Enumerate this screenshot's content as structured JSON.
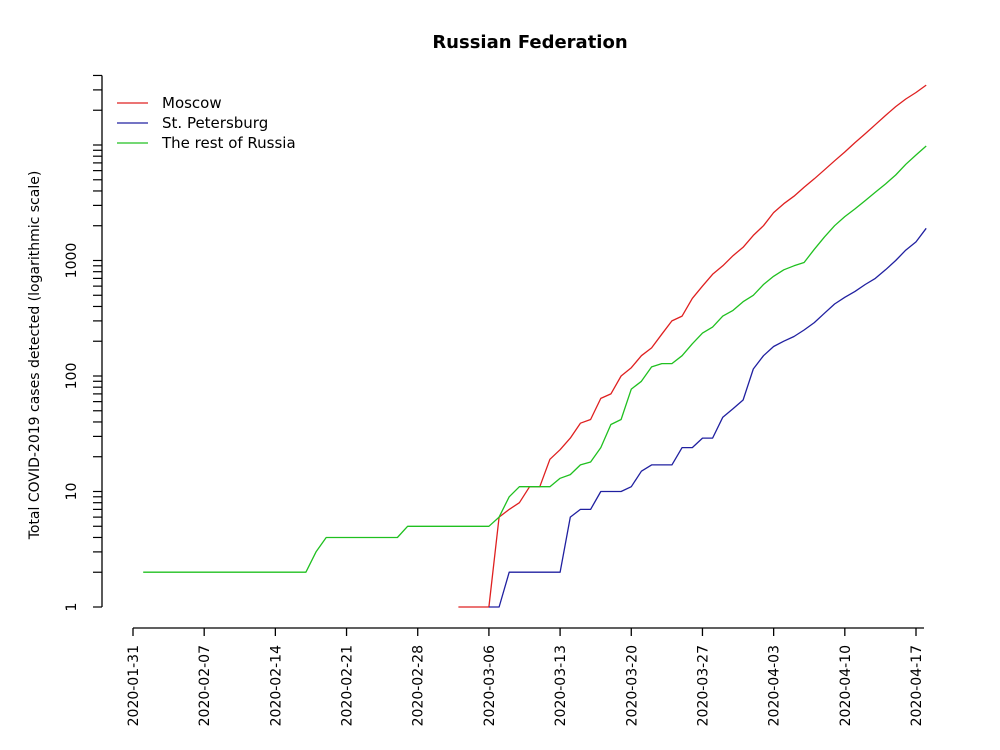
{
  "chart_data": {
    "type": "line",
    "title": "Russian Federation",
    "xlabel": "",
    "ylabel": "Total COVID-2019 cases detected (logarithmic scale)",
    "y_scale": "log",
    "ylim": [
      1,
      40000
    ],
    "y_ticks": [
      1,
      10,
      100,
      1000
    ],
    "y_tick_labels": [
      "1",
      "10",
      "100",
      "1000"
    ],
    "xlim": [
      "2020-01-31",
      "2020-04-18"
    ],
    "x_ticks": [
      "2020-01-31",
      "2020-02-07",
      "2020-02-14",
      "2020-02-21",
      "2020-02-28",
      "2020-03-06",
      "2020-03-13",
      "2020-03-20",
      "2020-03-27",
      "2020-04-03",
      "2020-04-10",
      "2020-04-17"
    ],
    "grid": false,
    "legend_position": "top-left",
    "series": [
      {
        "name": "Moscow",
        "color": "#DF2020",
        "points": [
          [
            "2020-03-03",
            1
          ],
          [
            "2020-03-04",
            1
          ],
          [
            "2020-03-05",
            1
          ],
          [
            "2020-03-06",
            1
          ],
          [
            "2020-03-07",
            6
          ],
          [
            "2020-03-08",
            7
          ],
          [
            "2020-03-09",
            8
          ],
          [
            "2020-03-10",
            11
          ],
          [
            "2020-03-11",
            11
          ],
          [
            "2020-03-12",
            19
          ],
          [
            "2020-03-13",
            23
          ],
          [
            "2020-03-14",
            29
          ],
          [
            "2020-03-15",
            39
          ],
          [
            "2020-03-16",
            42
          ],
          [
            "2020-03-17",
            64
          ],
          [
            "2020-03-18",
            70
          ],
          [
            "2020-03-19",
            100
          ],
          [
            "2020-03-20",
            118
          ],
          [
            "2020-03-21",
            150
          ],
          [
            "2020-03-22",
            175
          ],
          [
            "2020-03-23",
            230
          ],
          [
            "2020-03-24",
            300
          ],
          [
            "2020-03-25",
            330
          ],
          [
            "2020-03-26",
            470
          ],
          [
            "2020-03-27",
            600
          ],
          [
            "2020-03-28",
            760
          ],
          [
            "2020-03-29",
            900
          ],
          [
            "2020-03-30",
            1100
          ],
          [
            "2020-03-31",
            1300
          ],
          [
            "2020-04-01",
            1650
          ],
          [
            "2020-04-02",
            2000
          ],
          [
            "2020-04-03",
            2600
          ],
          [
            "2020-04-04",
            3100
          ],
          [
            "2020-04-05",
            3600
          ],
          [
            "2020-04-06",
            4300
          ],
          [
            "2020-04-07",
            5100
          ],
          [
            "2020-04-08",
            6100
          ],
          [
            "2020-04-09",
            7300
          ],
          [
            "2020-04-10",
            8700
          ],
          [
            "2020-04-11",
            10500
          ],
          [
            "2020-04-12",
            12500
          ],
          [
            "2020-04-13",
            15000
          ],
          [
            "2020-04-14",
            18000
          ],
          [
            "2020-04-15",
            21500
          ],
          [
            "2020-04-16",
            25000
          ],
          [
            "2020-04-17",
            28500
          ],
          [
            "2020-04-18",
            33000
          ]
        ]
      },
      {
        "name": "St. Petersburg",
        "color": "#2020A0",
        "points": [
          [
            "2020-03-06",
            1
          ],
          [
            "2020-03-07",
            1
          ],
          [
            "2020-03-08",
            2
          ],
          [
            "2020-03-09",
            2
          ],
          [
            "2020-03-10",
            2
          ],
          [
            "2020-03-11",
            2
          ],
          [
            "2020-03-12",
            2
          ],
          [
            "2020-03-13",
            2
          ],
          [
            "2020-03-14",
            6
          ],
          [
            "2020-03-15",
            7
          ],
          [
            "2020-03-16",
            7
          ],
          [
            "2020-03-17",
            10
          ],
          [
            "2020-03-18",
            10
          ],
          [
            "2020-03-19",
            10
          ],
          [
            "2020-03-20",
            11
          ],
          [
            "2020-03-21",
            15
          ],
          [
            "2020-03-22",
            17
          ],
          [
            "2020-03-23",
            17
          ],
          [
            "2020-03-24",
            17
          ],
          [
            "2020-03-25",
            24
          ],
          [
            "2020-03-26",
            24
          ],
          [
            "2020-03-27",
            29
          ],
          [
            "2020-03-28",
            29
          ],
          [
            "2020-03-29",
            44
          ],
          [
            "2020-03-30",
            52
          ],
          [
            "2020-03-31",
            62
          ],
          [
            "2020-04-01",
            115
          ],
          [
            "2020-04-02",
            150
          ],
          [
            "2020-04-03",
            180
          ],
          [
            "2020-04-04",
            200
          ],
          [
            "2020-04-05",
            220
          ],
          [
            "2020-04-06",
            250
          ],
          [
            "2020-04-07",
            290
          ],
          [
            "2020-04-08",
            350
          ],
          [
            "2020-04-09",
            420
          ],
          [
            "2020-04-10",
            480
          ],
          [
            "2020-04-11",
            540
          ],
          [
            "2020-04-12",
            620
          ],
          [
            "2020-04-13",
            700
          ],
          [
            "2020-04-14",
            830
          ],
          [
            "2020-04-15",
            1000
          ],
          [
            "2020-04-16",
            1230
          ],
          [
            "2020-04-17",
            1450
          ],
          [
            "2020-04-18",
            1900
          ]
        ]
      },
      {
        "name": "The rest of Russia",
        "color": "#20C020",
        "points": [
          [
            "2020-02-01",
            2
          ],
          [
            "2020-02-07",
            2
          ],
          [
            "2020-02-14",
            2
          ],
          [
            "2020-02-17",
            2
          ],
          [
            "2020-02-18",
            3
          ],
          [
            "2020-02-19",
            4
          ],
          [
            "2020-02-21",
            4
          ],
          [
            "2020-02-26",
            4
          ],
          [
            "2020-02-27",
            5
          ],
          [
            "2020-02-28",
            5
          ],
          [
            "2020-03-06",
            5
          ],
          [
            "2020-03-07",
            6
          ],
          [
            "2020-03-08",
            9
          ],
          [
            "2020-03-09",
            11
          ],
          [
            "2020-03-10",
            11
          ],
          [
            "2020-03-11",
            11
          ],
          [
            "2020-03-12",
            11
          ],
          [
            "2020-03-13",
            13
          ],
          [
            "2020-03-14",
            14
          ],
          [
            "2020-03-15",
            17
          ],
          [
            "2020-03-16",
            18
          ],
          [
            "2020-03-17",
            24
          ],
          [
            "2020-03-18",
            38
          ],
          [
            "2020-03-19",
            42
          ],
          [
            "2020-03-20",
            77
          ],
          [
            "2020-03-21",
            90
          ],
          [
            "2020-03-22",
            120
          ],
          [
            "2020-03-23",
            128
          ],
          [
            "2020-03-24",
            128
          ],
          [
            "2020-03-25",
            150
          ],
          [
            "2020-03-26",
            190
          ],
          [
            "2020-03-27",
            235
          ],
          [
            "2020-03-28",
            265
          ],
          [
            "2020-03-29",
            330
          ],
          [
            "2020-03-30",
            370
          ],
          [
            "2020-03-31",
            440
          ],
          [
            "2020-04-01",
            500
          ],
          [
            "2020-04-02",
            620
          ],
          [
            "2020-04-03",
            730
          ],
          [
            "2020-04-04",
            830
          ],
          [
            "2020-04-05",
            900
          ],
          [
            "2020-04-06",
            960
          ],
          [
            "2020-04-07",
            1250
          ],
          [
            "2020-04-08",
            1600
          ],
          [
            "2020-04-09",
            2000
          ],
          [
            "2020-04-10",
            2400
          ],
          [
            "2020-04-11",
            2800
          ],
          [
            "2020-04-12",
            3300
          ],
          [
            "2020-04-13",
            3900
          ],
          [
            "2020-04-14",
            4600
          ],
          [
            "2020-04-15",
            5500
          ],
          [
            "2020-04-16",
            6800
          ],
          [
            "2020-04-17",
            8200
          ],
          [
            "2020-04-18",
            9800
          ]
        ]
      }
    ]
  }
}
